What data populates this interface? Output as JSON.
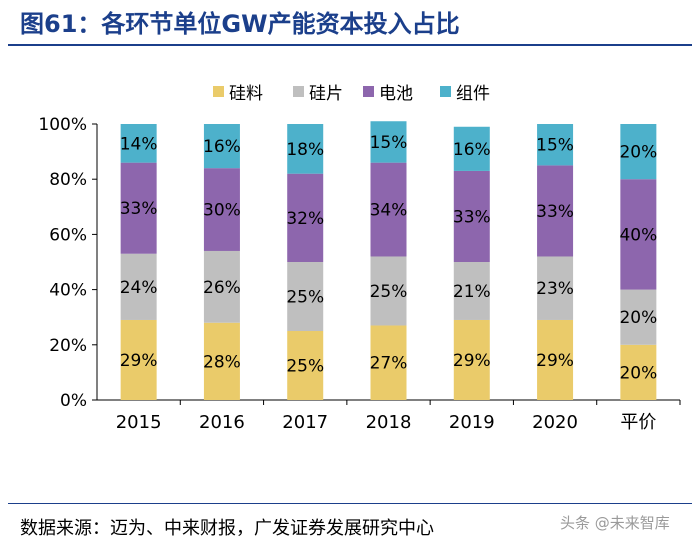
{
  "title": "图61：各环节单位GW产能资本投入占比",
  "source": "数据来源：迈为、中来财报，广发证券发展研究中心",
  "watermark": "头条 @未来智库",
  "chart_data": {
    "type": "bar",
    "stacked": true,
    "percent": true,
    "categories": [
      "2015",
      "2016",
      "2017",
      "2018",
      "2019",
      "2020",
      "平价"
    ],
    "series": [
      {
        "name": "硅料",
        "color": "#eacb6a",
        "values": [
          29,
          28,
          25,
          27,
          29,
          29,
          20
        ],
        "labels": [
          "29%",
          "28%",
          "25%",
          "27%",
          "29%",
          "29%",
          "20%"
        ]
      },
      {
        "name": "硅片",
        "color": "#bfbfbf",
        "values": [
          24,
          26,
          25,
          25,
          21,
          23,
          20
        ],
        "labels": [
          "24%",
          "26%",
          "25%",
          "25%",
          "21%",
          "23%",
          "20%"
        ]
      },
      {
        "name": "电池",
        "color": "#8d66ad",
        "values": [
          33,
          30,
          32,
          34,
          33,
          33,
          40
        ],
        "labels": [
          "33%",
          "30%",
          "32%",
          "34%",
          "33%",
          "33%",
          "40%"
        ]
      },
      {
        "name": "组件",
        "color": "#4db1cb",
        "values": [
          14,
          16,
          18,
          15,
          16,
          15,
          20
        ],
        "labels": [
          "14%",
          "16%",
          "18%",
          "15%",
          "16%",
          "15%",
          "20%"
        ]
      }
    ],
    "yticks": [
      "0%",
      "20%",
      "40%",
      "60%",
      "80%",
      "100%"
    ],
    "ylim": [
      0,
      100
    ],
    "grid": false,
    "legend": "top"
  }
}
